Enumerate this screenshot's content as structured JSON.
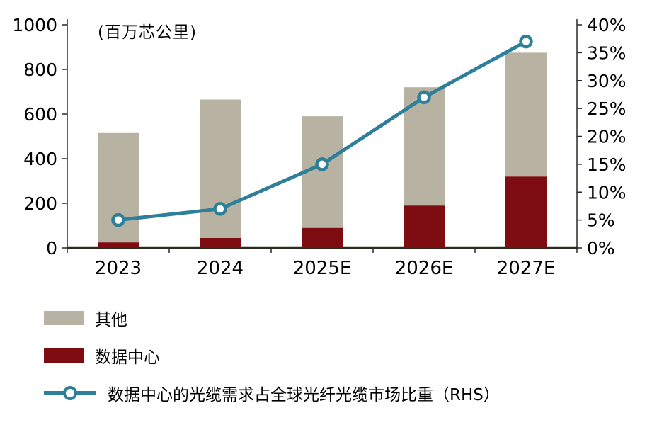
{
  "chart_data": {
    "type": "bar",
    "subtype": "stacked-bar-with-line",
    "unit_note": "(百万芯公里)",
    "categories": [
      "2023",
      "2024",
      "2025E",
      "2026E",
      "2027E"
    ],
    "series": [
      {
        "name": "其他",
        "type": "bar",
        "axis": "left",
        "color": "#b7b2a1",
        "values": [
          490,
          620,
          500,
          530,
          555
        ]
      },
      {
        "name": "数据中心",
        "type": "bar",
        "axis": "left",
        "color": "#7d0d10",
        "values": [
          25,
          45,
          90,
          190,
          320
        ]
      },
      {
        "name": "数据中心的光缆需求占全球光纤光缆市场比重（RHS）",
        "type": "line",
        "axis": "right",
        "color": "#2e7f9a",
        "values": [
          5,
          7,
          15,
          27,
          37
        ]
      }
    ],
    "stacked_totals": [
      515,
      665,
      590,
      720,
      875
    ],
    "left_axis": {
      "min": 0,
      "max": 1000,
      "step": 200,
      "ticks": [
        "0",
        "200",
        "400",
        "600",
        "800",
        "1000"
      ]
    },
    "right_axis": {
      "min": 0,
      "max": 40,
      "step": 5,
      "ticks": [
        "0%",
        "5%",
        "10%",
        "15%",
        "20%",
        "25%",
        "30%",
        "35%",
        "40%"
      ]
    },
    "axis_color": "#2b2b22",
    "grid": false,
    "legend_position": "bottom-left"
  }
}
